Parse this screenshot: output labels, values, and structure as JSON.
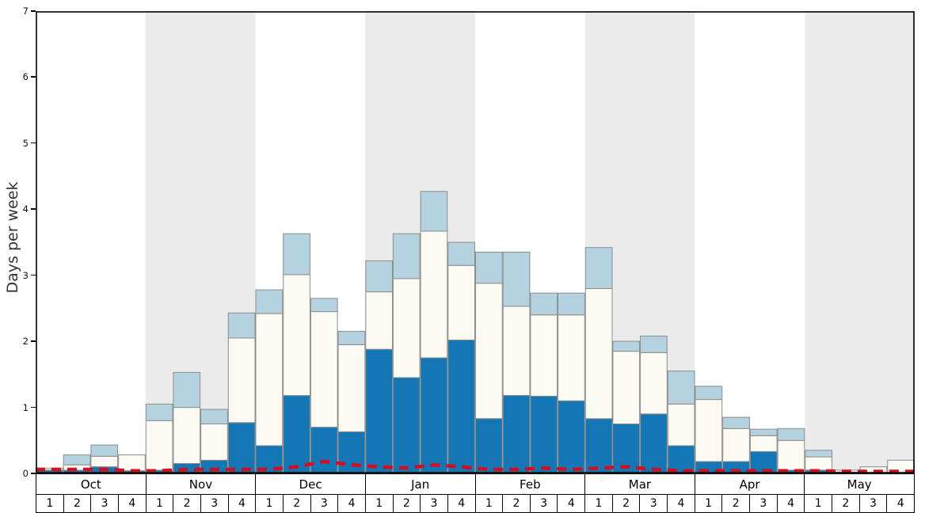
{
  "chart_data": {
    "type": "bar",
    "stacked": true,
    "title": "",
    "xlabel": "",
    "ylabel": "Days per week",
    "ylim": [
      0,
      7
    ],
    "yticks": [
      "0",
      "1",
      "2",
      "3",
      "4",
      "5",
      "6",
      "7"
    ],
    "grid": false,
    "legend": "none",
    "band_colors": [
      "#ffffff",
      "#ebebeb"
    ],
    "months": [
      "Oct",
      "Nov",
      "Dec",
      "Jan",
      "Feb",
      "Mar",
      "Apr",
      "May"
    ],
    "week_labels": [
      "1",
      "2",
      "3",
      "4"
    ],
    "series": [
      {
        "name": "dark-blue",
        "color": "#1576b5",
        "values": [
          0.05,
          0.05,
          0.1,
          0.04,
          0.05,
          0.15,
          0.2,
          0.77,
          0.42,
          1.18,
          0.7,
          0.63,
          1.88,
          1.45,
          1.75,
          2.02,
          0.83,
          1.18,
          1.17,
          1.1,
          0.83,
          0.75,
          0.9,
          0.42,
          0.18,
          0.18,
          0.33,
          0.05,
          0.05,
          0.02,
          0.0,
          0.0
        ]
      },
      {
        "name": "white",
        "color": "#fbfbf4",
        "values": [
          0.03,
          0.08,
          0.16,
          0.24,
          0.75,
          0.85,
          0.55,
          1.28,
          2.0,
          1.83,
          1.75,
          1.32,
          0.87,
          1.5,
          1.92,
          1.13,
          2.05,
          1.35,
          1.23,
          1.3,
          1.97,
          1.1,
          0.93,
          0.63,
          0.94,
          0.5,
          0.24,
          0.45,
          0.2,
          0.03,
          0.1,
          0.2
        ]
      },
      {
        "name": "light-blue",
        "color": "#b4d2e0",
        "values": [
          0.0,
          0.15,
          0.17,
          0.0,
          0.25,
          0.53,
          0.22,
          0.38,
          0.36,
          0.62,
          0.2,
          0.2,
          0.47,
          0.68,
          0.6,
          0.35,
          0.47,
          0.82,
          0.33,
          0.33,
          0.62,
          0.15,
          0.25,
          0.5,
          0.2,
          0.17,
          0.1,
          0.18,
          0.1,
          0.0,
          0.0,
          0.0
        ]
      }
    ],
    "line_series": {
      "name": "red-dashed",
      "color": "#d01020",
      "style": "dashed",
      "values": [
        0.06,
        0.06,
        0.06,
        0.04,
        0.04,
        0.06,
        0.06,
        0.06,
        0.06,
        0.1,
        0.18,
        0.13,
        0.1,
        0.08,
        0.13,
        0.1,
        0.06,
        0.06,
        0.08,
        0.06,
        0.08,
        0.1,
        0.06,
        0.04,
        0.04,
        0.04,
        0.04,
        0.04,
        0.04,
        0.03,
        0.03,
        0.03
      ]
    }
  }
}
